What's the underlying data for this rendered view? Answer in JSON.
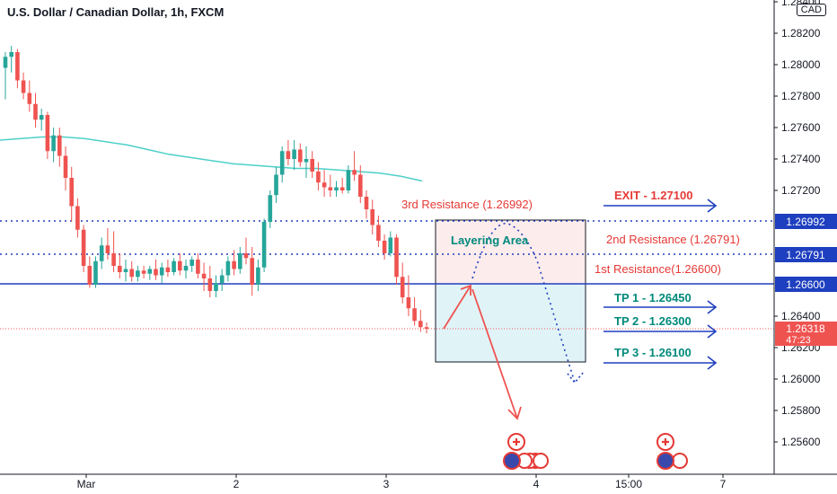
{
  "header": {
    "title": "U.S. Dollar / Canadian Dollar, 1h, FXCM",
    "unit": "CAD"
  },
  "colors": {
    "up": "#26a69a",
    "down": "#ef5350",
    "red_text": "#e53935",
    "teal_text": "#00897b",
    "blue": "#1e3fbf",
    "ma": "#4dd0c8",
    "level_line": "#1e3fbf",
    "price_badge": "#ef5350"
  },
  "chart_data": {
    "type": "candlestick",
    "symbol": "USDCAD",
    "timeframe": "1h",
    "x_ticks": [
      "Mar",
      "2",
      "3",
      "4",
      "15:00",
      "7"
    ],
    "y_ticks": [
      "1.28400",
      "1.28200",
      "1.28000",
      "1.27800",
      "1.27600",
      "1.27400",
      "1.27200",
      "1.26400",
      "1.26200",
      "1.26000",
      "1.25800",
      "1.25600"
    ],
    "ylim": [
      1.2541,
      1.2843
    ],
    "current_price": {
      "value": "1.26318",
      "countdown": "47:23"
    },
    "levels": [
      {
        "price": 1.26992,
        "label": "1.26992",
        "style": "dotted"
      },
      {
        "price": 1.26791,
        "label": "1.26791",
        "style": "dotted"
      },
      {
        "price": 1.266,
        "label": "1.26600",
        "style": "solid"
      }
    ],
    "annotations": {
      "exit": "EXIT - 1.27100",
      "res3": "3rd Resistance (1.26992)",
      "res2": "2nd Resistance (1.26791)",
      "res1": "1st Resistance(1.26600)",
      "tp1": "TP 1 - 1.26450",
      "tp2": "TP 2 - 1.26300",
      "tp3": "TP 3 - 1.26100",
      "zone": "Layering Area"
    },
    "moving_average": [
      1.2752,
      1.2753,
      1.2754,
      1.2754,
      1.2753,
      1.2751,
      1.2749,
      1.2746,
      1.2743,
      1.2741,
      1.2739,
      1.2737,
      1.2736,
      1.2735,
      1.2734,
      1.2734,
      1.2733,
      1.2732,
      1.2731,
      1.2729,
      1.2726
    ],
    "candles": [
      {
        "o": 1.2798,
        "h": 1.2808,
        "l": 1.2778,
        "c": 1.2805
      },
      {
        "o": 1.2805,
        "h": 1.2812,
        "l": 1.2795,
        "c": 1.2808
      },
      {
        "o": 1.2808,
        "h": 1.281,
        "l": 1.2785,
        "c": 1.279
      },
      {
        "o": 1.279,
        "h": 1.2795,
        "l": 1.2778,
        "c": 1.2782
      },
      {
        "o": 1.2782,
        "h": 1.279,
        "l": 1.277,
        "c": 1.2775
      },
      {
        "o": 1.2775,
        "h": 1.2782,
        "l": 1.276,
        "c": 1.2765
      },
      {
        "o": 1.2765,
        "h": 1.2772,
        "l": 1.2758,
        "c": 1.2768
      },
      {
        "o": 1.2768,
        "h": 1.277,
        "l": 1.274,
        "c": 1.2745
      },
      {
        "o": 1.2745,
        "h": 1.276,
        "l": 1.2738,
        "c": 1.2755
      },
      {
        "o": 1.2755,
        "h": 1.276,
        "l": 1.2735,
        "c": 1.2742
      },
      {
        "o": 1.2742,
        "h": 1.2748,
        "l": 1.272,
        "c": 1.2728
      },
      {
        "o": 1.2728,
        "h": 1.2735,
        "l": 1.27,
        "c": 1.271
      },
      {
        "o": 1.271,
        "h": 1.2715,
        "l": 1.269,
        "c": 1.2695
      },
      {
        "o": 1.2695,
        "h": 1.2698,
        "l": 1.2668,
        "c": 1.2672
      },
      {
        "o": 1.2672,
        "h": 1.2678,
        "l": 1.2658,
        "c": 1.266
      },
      {
        "o": 1.266,
        "h": 1.2678,
        "l": 1.2658,
        "c": 1.2675
      },
      {
        "o": 1.2675,
        "h": 1.269,
        "l": 1.267,
        "c": 1.2685
      },
      {
        "o": 1.2685,
        "h": 1.2696,
        "l": 1.2676,
        "c": 1.268
      },
      {
        "o": 1.268,
        "h": 1.2694,
        "l": 1.2668,
        "c": 1.2672
      },
      {
        "o": 1.2672,
        "h": 1.268,
        "l": 1.2664,
        "c": 1.2668
      },
      {
        "o": 1.2668,
        "h": 1.2676,
        "l": 1.2662,
        "c": 1.267
      },
      {
        "o": 1.267,
        "h": 1.2675,
        "l": 1.2662,
        "c": 1.2665
      },
      {
        "o": 1.2665,
        "h": 1.2672,
        "l": 1.2662,
        "c": 1.2669
      },
      {
        "o": 1.2669,
        "h": 1.2672,
        "l": 1.2664,
        "c": 1.2667
      },
      {
        "o": 1.2667,
        "h": 1.2672,
        "l": 1.2663,
        "c": 1.267
      },
      {
        "o": 1.267,
        "h": 1.2676,
        "l": 1.2663,
        "c": 1.2666
      },
      {
        "o": 1.2666,
        "h": 1.2674,
        "l": 1.2661,
        "c": 1.2671
      },
      {
        "o": 1.2671,
        "h": 1.2676,
        "l": 1.2665,
        "c": 1.2668
      },
      {
        "o": 1.2668,
        "h": 1.2677,
        "l": 1.2666,
        "c": 1.2675
      },
      {
        "o": 1.2675,
        "h": 1.268,
        "l": 1.2666,
        "c": 1.2669
      },
      {
        "o": 1.2669,
        "h": 1.2676,
        "l": 1.2664,
        "c": 1.2672
      },
      {
        "o": 1.2672,
        "h": 1.2678,
        "l": 1.2668,
        "c": 1.2676
      },
      {
        "o": 1.2676,
        "h": 1.268,
        "l": 1.2664,
        "c": 1.2667
      },
      {
        "o": 1.2667,
        "h": 1.2674,
        "l": 1.2656,
        "c": 1.2664
      },
      {
        "o": 1.2664,
        "h": 1.2672,
        "l": 1.2652,
        "c": 1.2656
      },
      {
        "o": 1.2656,
        "h": 1.2666,
        "l": 1.2652,
        "c": 1.2661
      },
      {
        "o": 1.2661,
        "h": 1.267,
        "l": 1.2656,
        "c": 1.2666
      },
      {
        "o": 1.2666,
        "h": 1.2678,
        "l": 1.2662,
        "c": 1.2675
      },
      {
        "o": 1.2675,
        "h": 1.2682,
        "l": 1.2666,
        "c": 1.267
      },
      {
        "o": 1.267,
        "h": 1.2684,
        "l": 1.2667,
        "c": 1.268
      },
      {
        "o": 1.268,
        "h": 1.269,
        "l": 1.2673,
        "c": 1.2677
      },
      {
        "o": 1.2677,
        "h": 1.2684,
        "l": 1.2653,
        "c": 1.266
      },
      {
        "o": 1.266,
        "h": 1.2676,
        "l": 1.2656,
        "c": 1.2671
      },
      {
        "o": 1.2671,
        "h": 1.2702,
        "l": 1.2668,
        "c": 1.27
      },
      {
        "o": 1.27,
        "h": 1.272,
        "l": 1.2696,
        "c": 1.2717
      },
      {
        "o": 1.2717,
        "h": 1.2735,
        "l": 1.2712,
        "c": 1.273
      },
      {
        "o": 1.273,
        "h": 1.2748,
        "l": 1.2725,
        "c": 1.2745
      },
      {
        "o": 1.2745,
        "h": 1.2752,
        "l": 1.2736,
        "c": 1.274
      },
      {
        "o": 1.274,
        "h": 1.2752,
        "l": 1.2733,
        "c": 1.2746
      },
      {
        "o": 1.2746,
        "h": 1.275,
        "l": 1.2735,
        "c": 1.2738
      },
      {
        "o": 1.2738,
        "h": 1.2748,
        "l": 1.2728,
        "c": 1.274
      },
      {
        "o": 1.274,
        "h": 1.2745,
        "l": 1.2728,
        "c": 1.2732
      },
      {
        "o": 1.2732,
        "h": 1.2738,
        "l": 1.272,
        "c": 1.2725
      },
      {
        "o": 1.2725,
        "h": 1.2733,
        "l": 1.2716,
        "c": 1.2722
      },
      {
        "o": 1.2722,
        "h": 1.273,
        "l": 1.2716,
        "c": 1.272
      },
      {
        "o": 1.272,
        "h": 1.2726,
        "l": 1.2716,
        "c": 1.2722
      },
      {
        "o": 1.2722,
        "h": 1.2728,
        "l": 1.2718,
        "c": 1.272
      },
      {
        "o": 1.272,
        "h": 1.2736,
        "l": 1.2718,
        "c": 1.2733
      },
      {
        "o": 1.2733,
        "h": 1.2745,
        "l": 1.2726,
        "c": 1.273
      },
      {
        "o": 1.273,
        "h": 1.2736,
        "l": 1.2712,
        "c": 1.2716
      },
      {
        "o": 1.2716,
        "h": 1.272,
        "l": 1.2702,
        "c": 1.2708
      },
      {
        "o": 1.2708,
        "h": 1.2714,
        "l": 1.2692,
        "c": 1.2698
      },
      {
        "o": 1.2698,
        "h": 1.2704,
        "l": 1.2684,
        "c": 1.2688
      },
      {
        "o": 1.2688,
        "h": 1.2692,
        "l": 1.2676,
        "c": 1.268
      },
      {
        "o": 1.268,
        "h": 1.2694,
        "l": 1.2678,
        "c": 1.269
      },
      {
        "o": 1.269,
        "h": 1.2692,
        "l": 1.266,
        "c": 1.2665
      },
      {
        "o": 1.2665,
        "h": 1.2674,
        "l": 1.2648,
        "c": 1.2652
      },
      {
        "o": 1.2652,
        "h": 1.2666,
        "l": 1.264,
        "c": 1.2645
      },
      {
        "o": 1.2645,
        "h": 1.2652,
        "l": 1.2634,
        "c": 1.2637
      },
      {
        "o": 1.2637,
        "h": 1.2644,
        "l": 1.263,
        "c": 1.2633
      },
      {
        "o": 1.2633,
        "h": 1.2636,
        "l": 1.2629,
        "c": 1.2632
      }
    ]
  },
  "events": {
    "group1_count": "4",
    "group2_count": "2"
  }
}
